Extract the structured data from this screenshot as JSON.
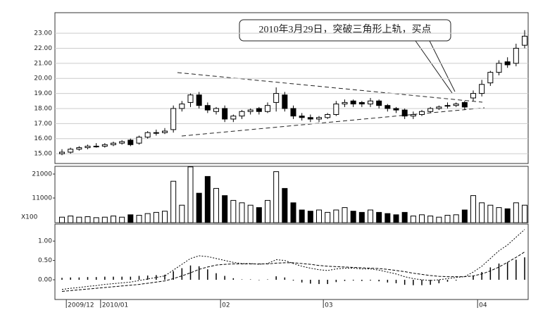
{
  "chart_data": [
    {
      "type": "candlestick",
      "annotation": "2010年3月29日，突破三角形上轨，买点",
      "open": [
        15.0,
        15.1,
        15.3,
        15.4,
        15.5,
        15.5,
        15.6,
        15.7,
        15.9,
        15.7,
        16.1,
        16.4,
        16.4,
        16.6,
        18.0,
        18.4,
        18.9,
        18.2,
        17.8,
        18.0,
        17.3,
        17.5,
        17.8,
        18.0,
        17.8,
        18.4,
        18.9,
        18.0,
        17.5,
        17.4,
        17.3,
        17.4,
        17.6,
        18.3,
        18.5,
        18.4,
        18.3,
        18.5,
        18.2,
        18.0,
        17.9,
        17.5,
        17.6,
        17.8,
        18.0,
        18.2,
        18.2,
        18.4,
        18.7,
        19.0,
        19.7,
        20.4,
        21.1,
        21.0,
        22.2
      ],
      "high": [
        15.3,
        15.4,
        15.5,
        15.6,
        15.7,
        15.7,
        15.8,
        15.9,
        16.0,
        16.2,
        16.5,
        16.6,
        16.7,
        18.2,
        18.5,
        19.0,
        19.1,
        18.4,
        18.1,
        18.2,
        17.6,
        17.9,
        18.0,
        18.1,
        18.4,
        19.4,
        19.1,
        18.2,
        17.7,
        17.6,
        17.5,
        17.7,
        18.5,
        18.6,
        18.6,
        18.5,
        18.7,
        18.6,
        18.3,
        18.1,
        18.0,
        17.8,
        17.9,
        18.1,
        18.2,
        18.4,
        18.4,
        18.5,
        19.2,
        19.9,
        20.5,
        21.2,
        21.4,
        22.3,
        23.2
      ],
      "low": [
        14.9,
        15.0,
        15.2,
        15.3,
        15.4,
        15.4,
        15.5,
        15.6,
        15.5,
        15.6,
        16.0,
        16.2,
        16.3,
        16.4,
        17.8,
        18.1,
        18.0,
        17.7,
        17.6,
        17.1,
        17.1,
        17.3,
        17.6,
        17.6,
        17.7,
        17.8,
        17.8,
        17.3,
        17.2,
        17.1,
        17.1,
        17.3,
        17.5,
        18.1,
        18.1,
        18.1,
        18.1,
        18.0,
        17.8,
        17.7,
        17.3,
        17.3,
        17.5,
        17.7,
        17.9,
        18.0,
        18.1,
        17.9,
        18.5,
        18.8,
        19.5,
        20.2,
        20.7,
        20.8,
        22.0
      ],
      "close": [
        15.1,
        15.3,
        15.4,
        15.5,
        15.5,
        15.6,
        15.7,
        15.8,
        15.6,
        16.1,
        16.4,
        16.4,
        16.5,
        18.0,
        18.3,
        18.9,
        18.2,
        17.9,
        18.0,
        17.3,
        17.5,
        17.8,
        17.9,
        17.8,
        18.2,
        19.0,
        18.0,
        17.5,
        17.4,
        17.3,
        17.4,
        17.6,
        18.3,
        18.4,
        18.3,
        18.3,
        18.5,
        18.2,
        18.0,
        17.9,
        17.5,
        17.6,
        17.8,
        18.0,
        18.1,
        18.2,
        18.3,
        18.1,
        19.0,
        19.6,
        20.4,
        21.0,
        20.9,
        22.0,
        22.8
      ],
      "ylim": [
        14.35,
        24.36
      ],
      "yticks": [
        {
          "value": 15,
          "label": "15.00"
        },
        {
          "value": 16,
          "label": "16.00"
        },
        {
          "value": 17,
          "label": "17.00"
        },
        {
          "value": 18,
          "label": "18.00"
        },
        {
          "value": 19,
          "label": "19.00"
        },
        {
          "value": 20,
          "label": "20.00"
        },
        {
          "value": 21,
          "label": "21.00"
        },
        {
          "value": 22,
          "label": "22.00"
        },
        {
          "value": 23,
          "label": "23.00"
        }
      ],
      "grid": true
    },
    {
      "type": "bar",
      "unit_label": "X100",
      "values": [
        3000,
        3500,
        3000,
        3200,
        2800,
        3000,
        3500,
        3000,
        4000,
        3800,
        4500,
        5000,
        5500,
        18000,
        8000,
        24000,
        13000,
        20000,
        15000,
        12000,
        10000,
        9000,
        8000,
        7000,
        10000,
        22000,
        15000,
        9000,
        6000,
        5500,
        6000,
        5000,
        6000,
        7000,
        5500,
        5000,
        6000,
        5000,
        4500,
        4000,
        5000,
        3500,
        4000,
        3500,
        3000,
        3800,
        4000,
        6000,
        12000,
        9000,
        8000,
        7000,
        6500,
        9000,
        8000
      ],
      "ylim": [
        700,
        24235
      ],
      "yticks": [
        11000,
        21000
      ]
    },
    {
      "type": "macd",
      "categories": [
        null,
        "2009/12",
        null,
        null,
        null,
        "2010/01",
        null,
        null,
        null,
        null,
        null,
        null,
        null,
        null,
        null,
        null,
        null,
        null,
        null,
        "02",
        null,
        null,
        null,
        null,
        null,
        null,
        null,
        null,
        null,
        null,
        null,
        "03",
        null,
        null,
        null,
        null,
        null,
        null,
        null,
        null,
        null,
        null,
        null,
        null,
        null,
        null,
        null,
        null,
        null,
        "04",
        null,
        null,
        null,
        null,
        null
      ],
      "dif": [
        -0.25,
        -0.22,
        -0.2,
        -0.17,
        -0.15,
        -0.12,
        -0.1,
        -0.08,
        -0.06,
        -0.02,
        0.02,
        0.06,
        0.1,
        0.25,
        0.4,
        0.55,
        0.62,
        0.6,
        0.55,
        0.5,
        0.45,
        0.42,
        0.42,
        0.4,
        0.42,
        0.52,
        0.5,
        0.42,
        0.35,
        0.3,
        0.26,
        0.24,
        0.28,
        0.3,
        0.3,
        0.28,
        0.28,
        0.25,
        0.2,
        0.15,
        0.08,
        0.03,
        0.0,
        -0.02,
        0.0,
        0.03,
        0.06,
        0.08,
        0.2,
        0.35,
        0.55,
        0.75,
        0.9,
        1.1,
        1.3
      ],
      "dea": [
        -0.3,
        -0.28,
        -0.26,
        -0.24,
        -0.22,
        -0.2,
        -0.18,
        -0.16,
        -0.14,
        -0.12,
        -0.09,
        -0.06,
        -0.03,
        0.03,
        0.1,
        0.18,
        0.27,
        0.33,
        0.38,
        0.4,
        0.41,
        0.41,
        0.41,
        0.41,
        0.41,
        0.43,
        0.44,
        0.44,
        0.42,
        0.4,
        0.37,
        0.35,
        0.34,
        0.33,
        0.32,
        0.31,
        0.3,
        0.29,
        0.27,
        0.24,
        0.21,
        0.17,
        0.14,
        0.11,
        0.09,
        0.08,
        0.08,
        0.08,
        0.1,
        0.15,
        0.23,
        0.33,
        0.45,
        0.58,
        0.72
      ],
      "histogram": [
        0.05,
        0.06,
        0.06,
        0.07,
        0.07,
        0.08,
        0.08,
        0.08,
        0.08,
        0.1,
        0.11,
        0.12,
        0.13,
        0.22,
        0.3,
        0.37,
        0.35,
        0.27,
        0.17,
        0.1,
        0.04,
        0.01,
        0.01,
        -0.01,
        0.01,
        0.09,
        0.06,
        -0.02,
        -0.07,
        -0.1,
        -0.11,
        -0.11,
        -0.06,
        -0.03,
        -0.02,
        -0.03,
        -0.02,
        -0.04,
        -0.07,
        -0.09,
        -0.13,
        -0.14,
        -0.14,
        -0.13,
        -0.09,
        -0.05,
        -0.02,
        0,
        0.1,
        0.2,
        0.32,
        0.42,
        0.45,
        0.52,
        0.58
      ],
      "ylim": [
        -0.51,
        1.44
      ],
      "yticks": [
        {
          "value": 0,
          "label": "0.00"
        },
        {
          "value": 0.5,
          "label": "0.50"
        },
        {
          "value": 1,
          "label": "1.00"
        }
      ]
    }
  ]
}
